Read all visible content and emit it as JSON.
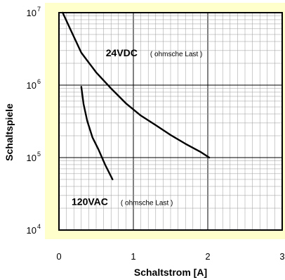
{
  "chart_data": {
    "type": "line",
    "title": "",
    "xlabel": "Schaltstrom [A]",
    "ylabel": "Schaltspiele",
    "xlim": [
      0,
      3
    ],
    "ylim": [
      10000,
      10000000
    ],
    "yscale": "log",
    "grid": true,
    "x_ticks": [
      "0",
      "1",
      "2",
      "3"
    ],
    "y_ticks": [
      {
        "base": "10",
        "exp": "4",
        "value": 10000
      },
      {
        "base": "10",
        "exp": "5",
        "value": 100000
      },
      {
        "base": "10",
        "exp": "6",
        "value": 1000000
      },
      {
        "base": "10",
        "exp": "7",
        "value": 10000000
      }
    ],
    "series": [
      {
        "key": "24vdc",
        "x": [
          0.05,
          0.15,
          0.3,
          0.5,
          0.7,
          0.9,
          1.1,
          1.3,
          1.5,
          1.7,
          1.9,
          2.02
        ],
        "y": [
          10000000,
          6000000,
          2800000,
          1500000,
          900000,
          560000,
          380000,
          280000,
          205000,
          155000,
          120000,
          100000
        ]
      },
      {
        "key": "120vac",
        "x": [
          0.3,
          0.33,
          0.38,
          0.45,
          0.53,
          0.62,
          0.72
        ],
        "y": [
          950000,
          550000,
          320000,
          190000,
          130000,
          80000,
          50000
        ]
      }
    ],
    "annotations": [
      {
        "text": "24VDC",
        "note": "( ohmsche Last )",
        "x": 0.63,
        "y": 2500000
      },
      {
        "text": "120VAC",
        "note": "( ohmsche Last )",
        "x": 0.17,
        "y": 22000
      }
    ],
    "colors": {
      "background": "#ffffcc",
      "plot_area": "#ffffff",
      "grid": "#999999",
      "line": "#000000"
    }
  }
}
